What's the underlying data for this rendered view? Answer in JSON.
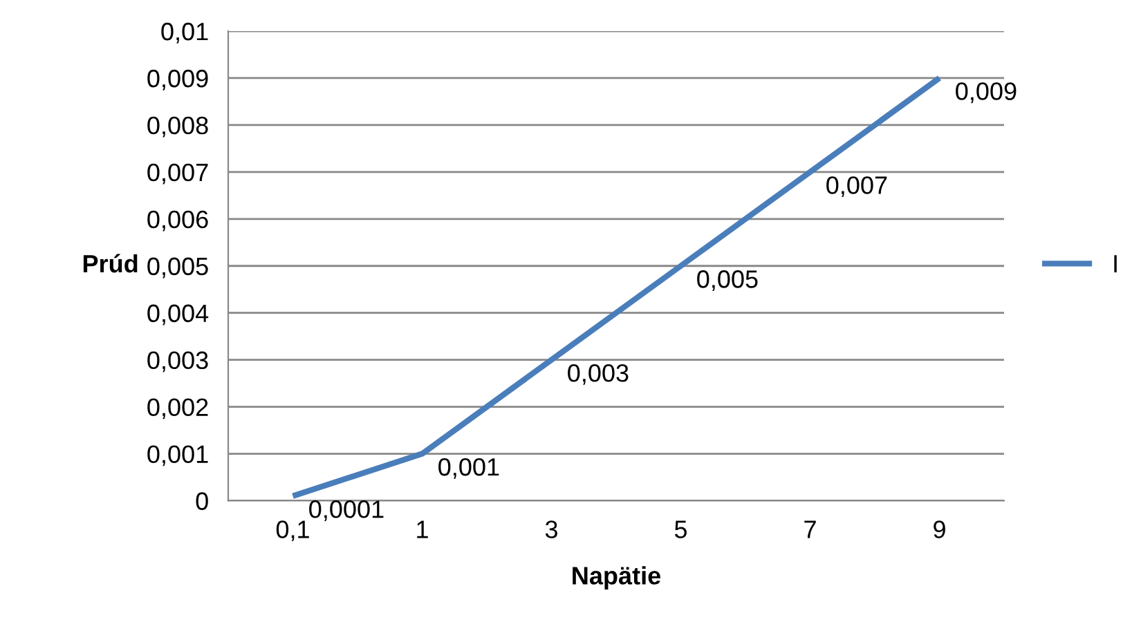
{
  "chart_data": {
    "type": "line",
    "xlabel": "Napätie",
    "ylabel": "Prúd",
    "categories": [
      "0,1",
      "1",
      "3",
      "5",
      "7",
      "9"
    ],
    "series": [
      {
        "name": "I",
        "color": "#4a7ebb",
        "values": [
          0.0001,
          0.001,
          0.003,
          0.005,
          0.007,
          0.009
        ],
        "value_labels": [
          "0,0001",
          "0,001",
          "0,003",
          "0,005",
          "0,007",
          "0,009"
        ]
      }
    ],
    "ylim": [
      0,
      0.01
    ],
    "yticks": [
      0,
      {
        "value": 0.001,
        "label": "0,001"
      },
      {
        "value": 0.002,
        "label": "0,002"
      },
      {
        "value": 0.003,
        "label": "0,003"
      },
      {
        "value": 0.004,
        "label": "0,004"
      },
      {
        "value": 0.005,
        "label": "0,005"
      },
      {
        "value": 0.006,
        "label": "0,006"
      },
      {
        "value": 0.007,
        "label": "0,007"
      },
      {
        "value": 0.008,
        "label": "0,008"
      },
      {
        "value": 0.009,
        "label": "0,009"
      },
      {
        "value": 0.01,
        "label": "0,01"
      }
    ],
    "grid": "y",
    "legend": "right",
    "marker": "none",
    "line_style": "solid"
  }
}
